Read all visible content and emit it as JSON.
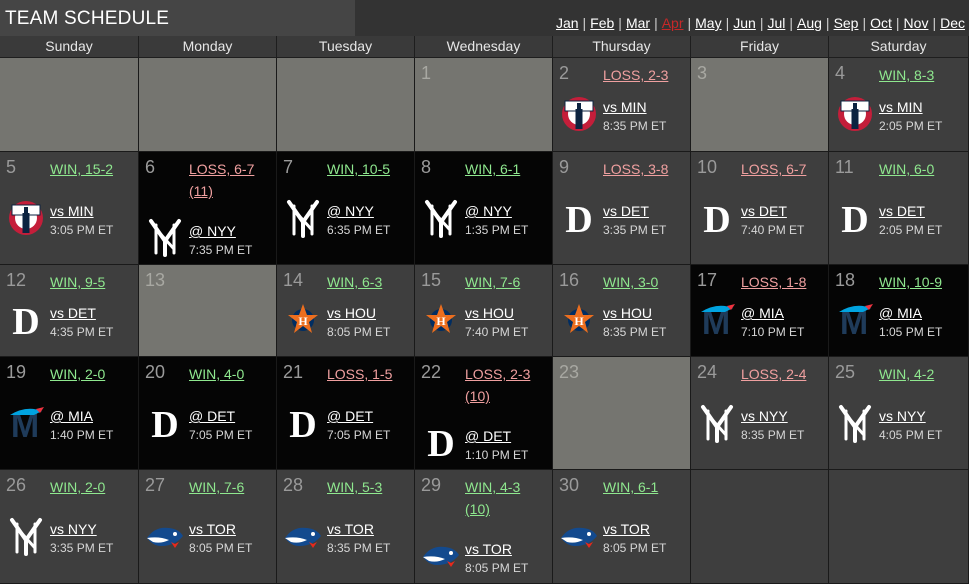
{
  "title": "TEAM SCHEDULE",
  "months": [
    {
      "label": "Jan",
      "current": false
    },
    {
      "label": "Feb",
      "current": false
    },
    {
      "label": "Mar",
      "current": false
    },
    {
      "label": "Apr",
      "current": true
    },
    {
      "label": "May",
      "current": false
    },
    {
      "label": "Jun",
      "current": false
    },
    {
      "label": "Jul",
      "current": false
    },
    {
      "label": "Aug",
      "current": false
    },
    {
      "label": "Sep",
      "current": false
    },
    {
      "label": "Oct",
      "current": false
    },
    {
      "label": "Nov",
      "current": false
    },
    {
      "label": "Dec",
      "current": false
    }
  ],
  "weekdays": [
    "Sunday",
    "Monday",
    "Tuesday",
    "Wednesday",
    "Thursday",
    "Friday",
    "Saturday"
  ],
  "weeks": [
    [
      {
        "style": "empty"
      },
      {
        "style": "empty"
      },
      {
        "style": "empty"
      },
      {
        "day": "1",
        "style": "empty"
      },
      {
        "day": "2",
        "style": "mid",
        "result": "LOSS, 2-3",
        "outcome": "loss",
        "game": "vs MIN",
        "time": "8:35 PM ET",
        "logo": "twins-logo-icon"
      },
      {
        "day": "3",
        "style": "empty"
      },
      {
        "day": "4",
        "style": "mid",
        "result": "WIN, 8-3",
        "outcome": "win",
        "game": "vs MIN",
        "time": "2:05 PM ET",
        "logo": "twins-logo-icon"
      }
    ],
    [
      {
        "day": "5",
        "style": "mid",
        "result": "WIN, 15-2",
        "outcome": "win",
        "game": "vs MIN",
        "time": "3:05 PM ET",
        "logo": "twins-logo-icon"
      },
      {
        "day": "6",
        "style": "dark",
        "result": "LOSS, 6-7",
        "extra": "(11)",
        "outcome": "loss",
        "game": "@ NYY",
        "time": "7:35 PM ET",
        "logo": "yankees-logo-icon"
      },
      {
        "day": "7",
        "style": "dark",
        "result": "WIN, 10-5",
        "outcome": "win",
        "game": "@ NYY",
        "time": "6:35 PM ET",
        "logo": "yankees-logo-icon"
      },
      {
        "day": "8",
        "style": "dark",
        "result": "WIN, 6-1",
        "outcome": "win",
        "game": "@ NYY",
        "time": "1:35 PM ET",
        "logo": "yankees-logo-icon"
      },
      {
        "day": "9",
        "style": "mid",
        "result": "LOSS, 3-8",
        "outcome": "loss",
        "game": "vs DET",
        "time": "3:35 PM ET",
        "logo": "tigers-logo-icon"
      },
      {
        "day": "10",
        "style": "mid",
        "result": "LOSS, 6-7",
        "outcome": "loss",
        "game": "vs DET",
        "time": "7:40 PM ET",
        "logo": "tigers-logo-icon"
      },
      {
        "day": "11",
        "style": "mid",
        "result": "WIN, 6-0",
        "outcome": "win",
        "game": "vs DET",
        "time": "2:05 PM ET",
        "logo": "tigers-logo-icon"
      }
    ],
    [
      {
        "day": "12",
        "style": "mid",
        "result": "WIN, 9-5",
        "outcome": "win",
        "game": "vs DET",
        "time": "4:35 PM ET",
        "logo": "tigers-logo-icon"
      },
      {
        "day": "13",
        "style": "empty"
      },
      {
        "day": "14",
        "style": "mid",
        "result": "WIN, 6-3",
        "outcome": "win",
        "game": "vs HOU",
        "time": "8:05 PM ET",
        "logo": "astros-logo-icon"
      },
      {
        "day": "15",
        "style": "mid",
        "result": "WIN, 7-6",
        "outcome": "win",
        "game": "vs HOU",
        "time": "7:40 PM ET",
        "logo": "astros-logo-icon"
      },
      {
        "day": "16",
        "style": "mid",
        "result": "WIN, 3-0",
        "outcome": "win",
        "game": "vs HOU",
        "time": "8:35 PM ET",
        "logo": "astros-logo-icon"
      },
      {
        "day": "17",
        "style": "dark",
        "result": "LOSS, 1-8",
        "outcome": "loss",
        "game": "@ MIA",
        "time": "7:10 PM ET",
        "logo": "marlins-logo-icon"
      },
      {
        "day": "18",
        "style": "dark",
        "result": "WIN, 10-9",
        "outcome": "win",
        "game": "@ MIA",
        "time": "1:05 PM ET",
        "logo": "marlins-logo-icon"
      }
    ],
    [
      {
        "day": "19",
        "style": "dark",
        "result": "WIN, 2-0",
        "outcome": "win",
        "game": "@ MIA",
        "time": "1:40 PM ET",
        "logo": "marlins-logo-icon"
      },
      {
        "day": "20",
        "style": "dark",
        "result": "WIN, 4-0",
        "outcome": "win",
        "game": "@ DET",
        "time": "7:05 PM ET",
        "logo": "tigers-logo-icon"
      },
      {
        "day": "21",
        "style": "dark",
        "result": "LOSS, 1-5",
        "outcome": "loss",
        "game": "@ DET",
        "time": "7:05 PM ET",
        "logo": "tigers-logo-icon"
      },
      {
        "day": "22",
        "style": "dark",
        "result": "LOSS, 2-3",
        "extra": "(10)",
        "outcome": "loss",
        "game": "@ DET",
        "time": "1:10 PM ET",
        "logo": "tigers-logo-icon"
      },
      {
        "day": "23",
        "style": "empty"
      },
      {
        "day": "24",
        "style": "mid",
        "result": "LOSS, 2-4",
        "outcome": "loss",
        "game": "vs NYY",
        "time": "8:35 PM ET",
        "logo": "yankees-logo-icon"
      },
      {
        "day": "25",
        "style": "mid",
        "result": "WIN, 4-2",
        "outcome": "win",
        "game": "vs NYY",
        "time": "4:05 PM ET",
        "logo": "yankees-logo-icon"
      }
    ],
    [
      {
        "day": "26",
        "style": "mid",
        "result": "WIN, 2-0",
        "outcome": "win",
        "game": "vs NYY",
        "time": "3:35 PM ET",
        "logo": "yankees-logo-icon"
      },
      {
        "day": "27",
        "style": "mid",
        "result": "WIN, 7-6",
        "outcome": "win",
        "game": "vs TOR",
        "time": "8:05 PM ET",
        "logo": "bluejays-logo-icon"
      },
      {
        "day": "28",
        "style": "mid",
        "result": "WIN, 5-3",
        "outcome": "win",
        "game": "vs TOR",
        "time": "8:35 PM ET",
        "logo": "bluejays-logo-icon"
      },
      {
        "day": "29",
        "style": "mid",
        "result": "WIN, 4-3",
        "extra": "(10)",
        "outcome": "win",
        "game": "vs TOR",
        "time": "8:05 PM ET",
        "logo": "bluejays-logo-icon"
      },
      {
        "day": "30",
        "style": "mid",
        "result": "WIN, 6-1",
        "outcome": "win",
        "game": "vs TOR",
        "time": "8:05 PM ET",
        "logo": "bluejays-logo-icon"
      },
      {
        "style": "mid"
      },
      {
        "style": "mid"
      }
    ]
  ]
}
